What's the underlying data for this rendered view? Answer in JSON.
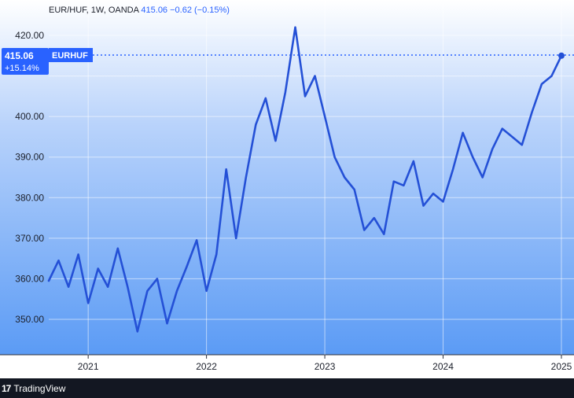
{
  "legend": {
    "symbol": "EUR/HUF",
    "interval": "1W",
    "source": "OANDA",
    "last": "415.06",
    "change": "−0.62 (−0.15%)"
  },
  "badge": {
    "price": "415.06",
    "pct": "+15.14%",
    "name": "EURHUF"
  },
  "footer": {
    "logo": "17",
    "brand": "TradingView"
  },
  "colors": {
    "line": "#2450d6",
    "badge": "#2962ff",
    "bg_top": "#ffffff",
    "bg_bottom": "#5b9bf5"
  },
  "chart_data": {
    "type": "line",
    "ylim": [
      345,
      424
    ],
    "xlim": [
      "2020-09",
      "2025-01"
    ],
    "grid": true,
    "yticks": [
      "350.00",
      "360.00",
      "370.00",
      "380.00",
      "390.00",
      "400.00",
      "410.00",
      "420.00"
    ],
    "xticks": [
      "2021",
      "2022",
      "2023",
      "2024",
      "2025"
    ],
    "series": [
      {
        "x": [
          "2020-09",
          "2020-10",
          "2020-11",
          "2020-12",
          "2021-01",
          "2021-02",
          "2021-03",
          "2021-04",
          "2021-05",
          "2021-06",
          "2021-07",
          "2021-08",
          "2021-09",
          "2021-10",
          "2021-11",
          "2021-12",
          "2022-01",
          "2022-02",
          "2022-03",
          "2022-04",
          "2022-05",
          "2022-06",
          "2022-07",
          "2022-08",
          "2022-09",
          "2022-10",
          "2022-11",
          "2022-12",
          "2023-01",
          "2023-02",
          "2023-03",
          "2023-04",
          "2023-05",
          "2023-06",
          "2023-07",
          "2023-08",
          "2023-09",
          "2023-10",
          "2023-11",
          "2023-12",
          "2024-01",
          "2024-02",
          "2024-03",
          "2024-04",
          "2024-05",
          "2024-06",
          "2024-07",
          "2024-08",
          "2024-09",
          "2024-10",
          "2024-11",
          "2024-12",
          "2025-01"
        ],
        "values": [
          359.5,
          364.5,
          358,
          366,
          354,
          362.5,
          358,
          367.5,
          358,
          347,
          357,
          360,
          349,
          357,
          363,
          369.5,
          357,
          366,
          387,
          370,
          385,
          398,
          404.5,
          394,
          406,
          422,
          405,
          410,
          400,
          390,
          385,
          382,
          372,
          375,
          371,
          384,
          383,
          389,
          378,
          381,
          379,
          387,
          396,
          390,
          385,
          392,
          397,
          395,
          393,
          401,
          408,
          410,
          415
        ]
      }
    ]
  }
}
